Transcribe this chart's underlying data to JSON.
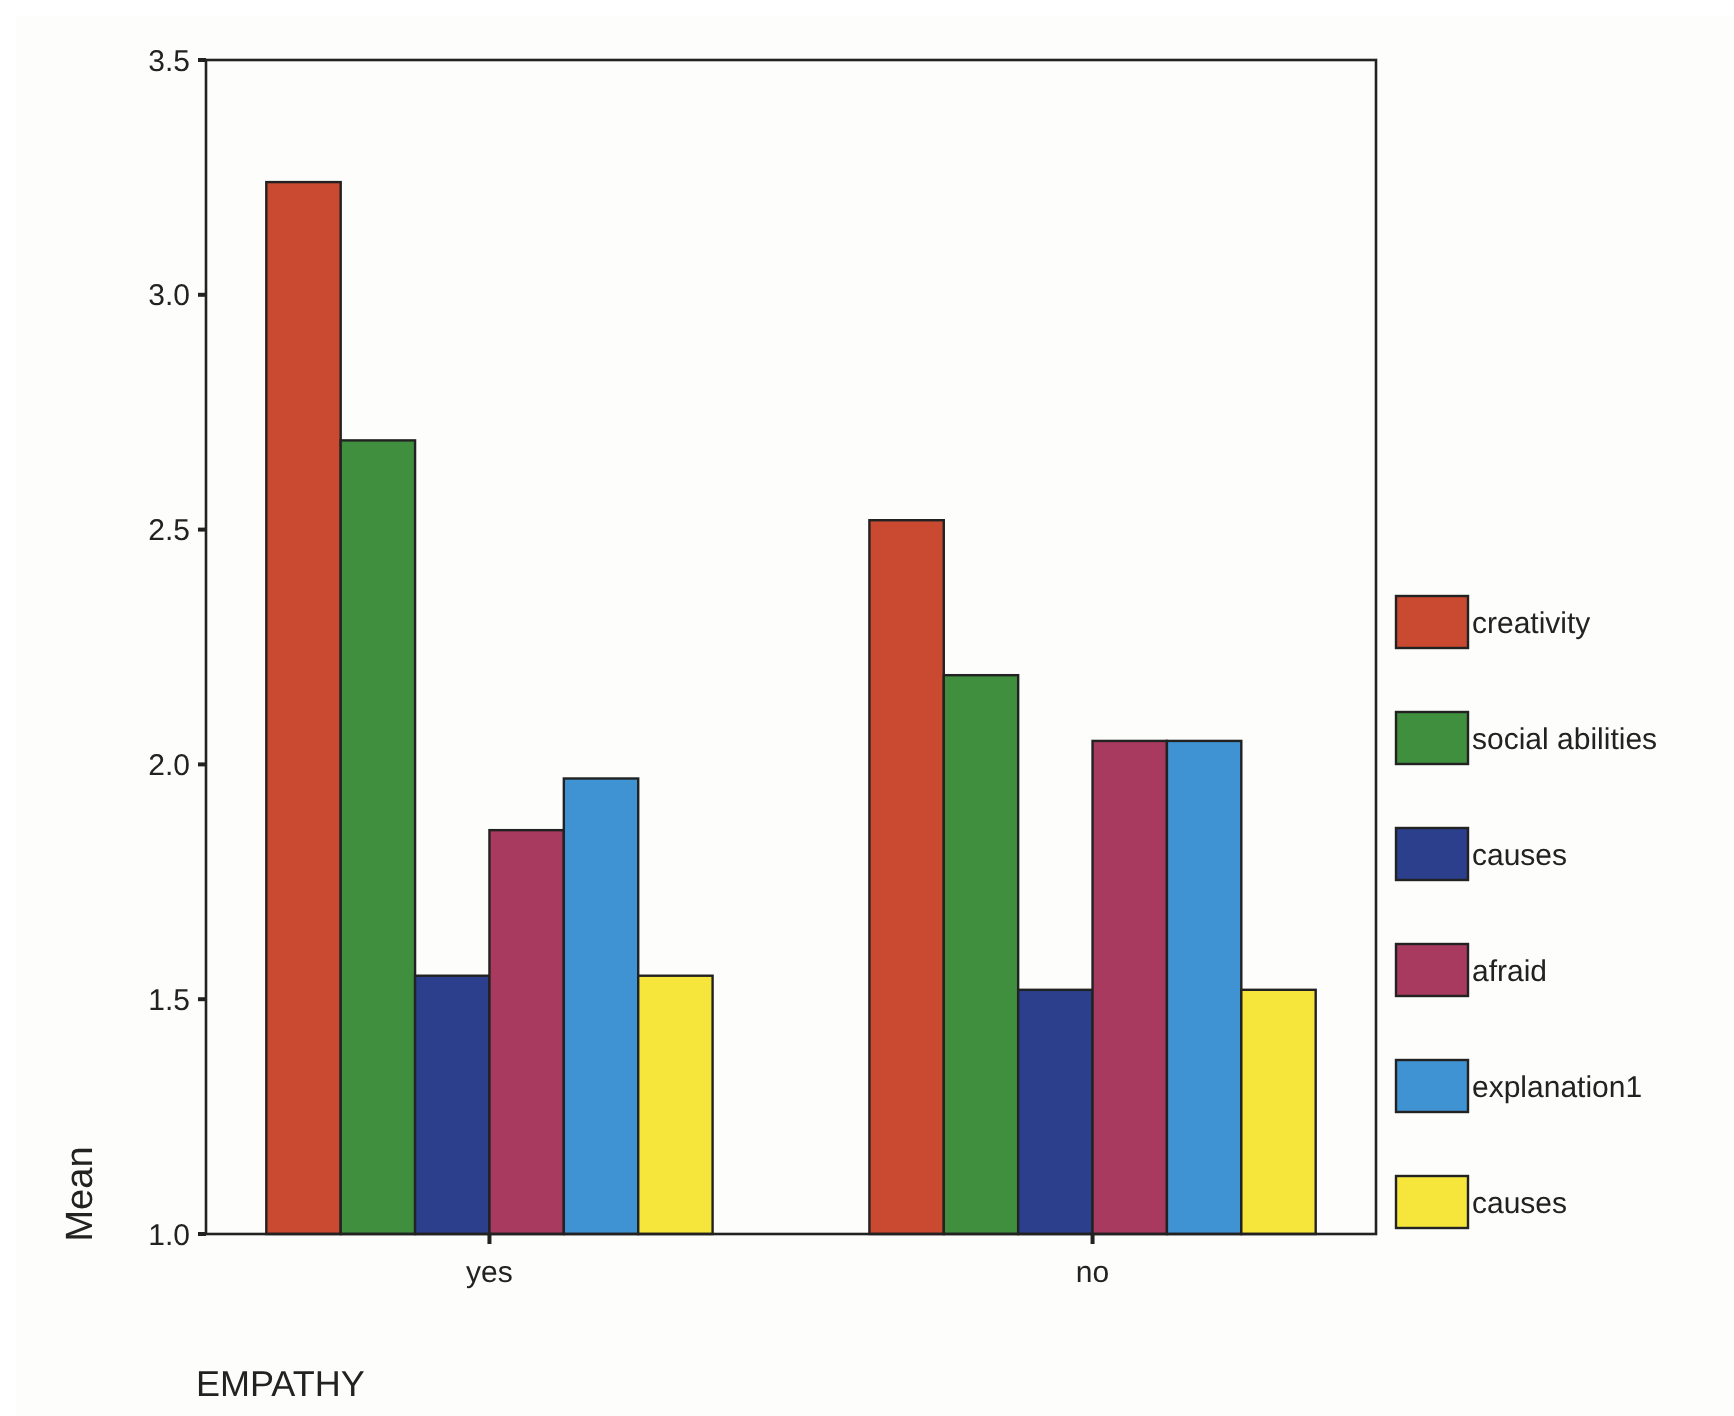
{
  "chart_data": {
    "type": "bar",
    "xlabel": "EMPATHY",
    "ylabel": "Mean",
    "categories": [
      "yes",
      "no"
    ],
    "series": [
      {
        "name": "creativity",
        "color": "#c94a30",
        "values": [
          3.24,
          2.52
        ]
      },
      {
        "name": "social abilities",
        "color": "#3f8f3f",
        "values": [
          2.69,
          2.19
        ]
      },
      {
        "name": "causes",
        "color": "#2c3f8c",
        "values": [
          1.55,
          1.52
        ]
      },
      {
        "name": "afraid",
        "color": "#a83a60",
        "values": [
          1.86,
          2.05
        ]
      },
      {
        "name": "explanation1",
        "color": "#3f93d3",
        "values": [
          1.97,
          2.05
        ]
      },
      {
        "name": "causes",
        "color": "#f6e63c",
        "values": [
          1.55,
          1.52
        ]
      }
    ],
    "ylim": [
      1.0,
      3.5
    ],
    "yticks": [
      {
        "value": 1,
        "label": "1.0"
      },
      {
        "value": 1.5,
        "label": "1.5"
      },
      {
        "value": 2,
        "label": "2.0"
      },
      {
        "value": 2.5,
        "label": "2.5"
      },
      {
        "value": 3,
        "label": "3.0"
      },
      {
        "value": 3.5,
        "label": "3.5"
      }
    ],
    "legend": "right"
  }
}
